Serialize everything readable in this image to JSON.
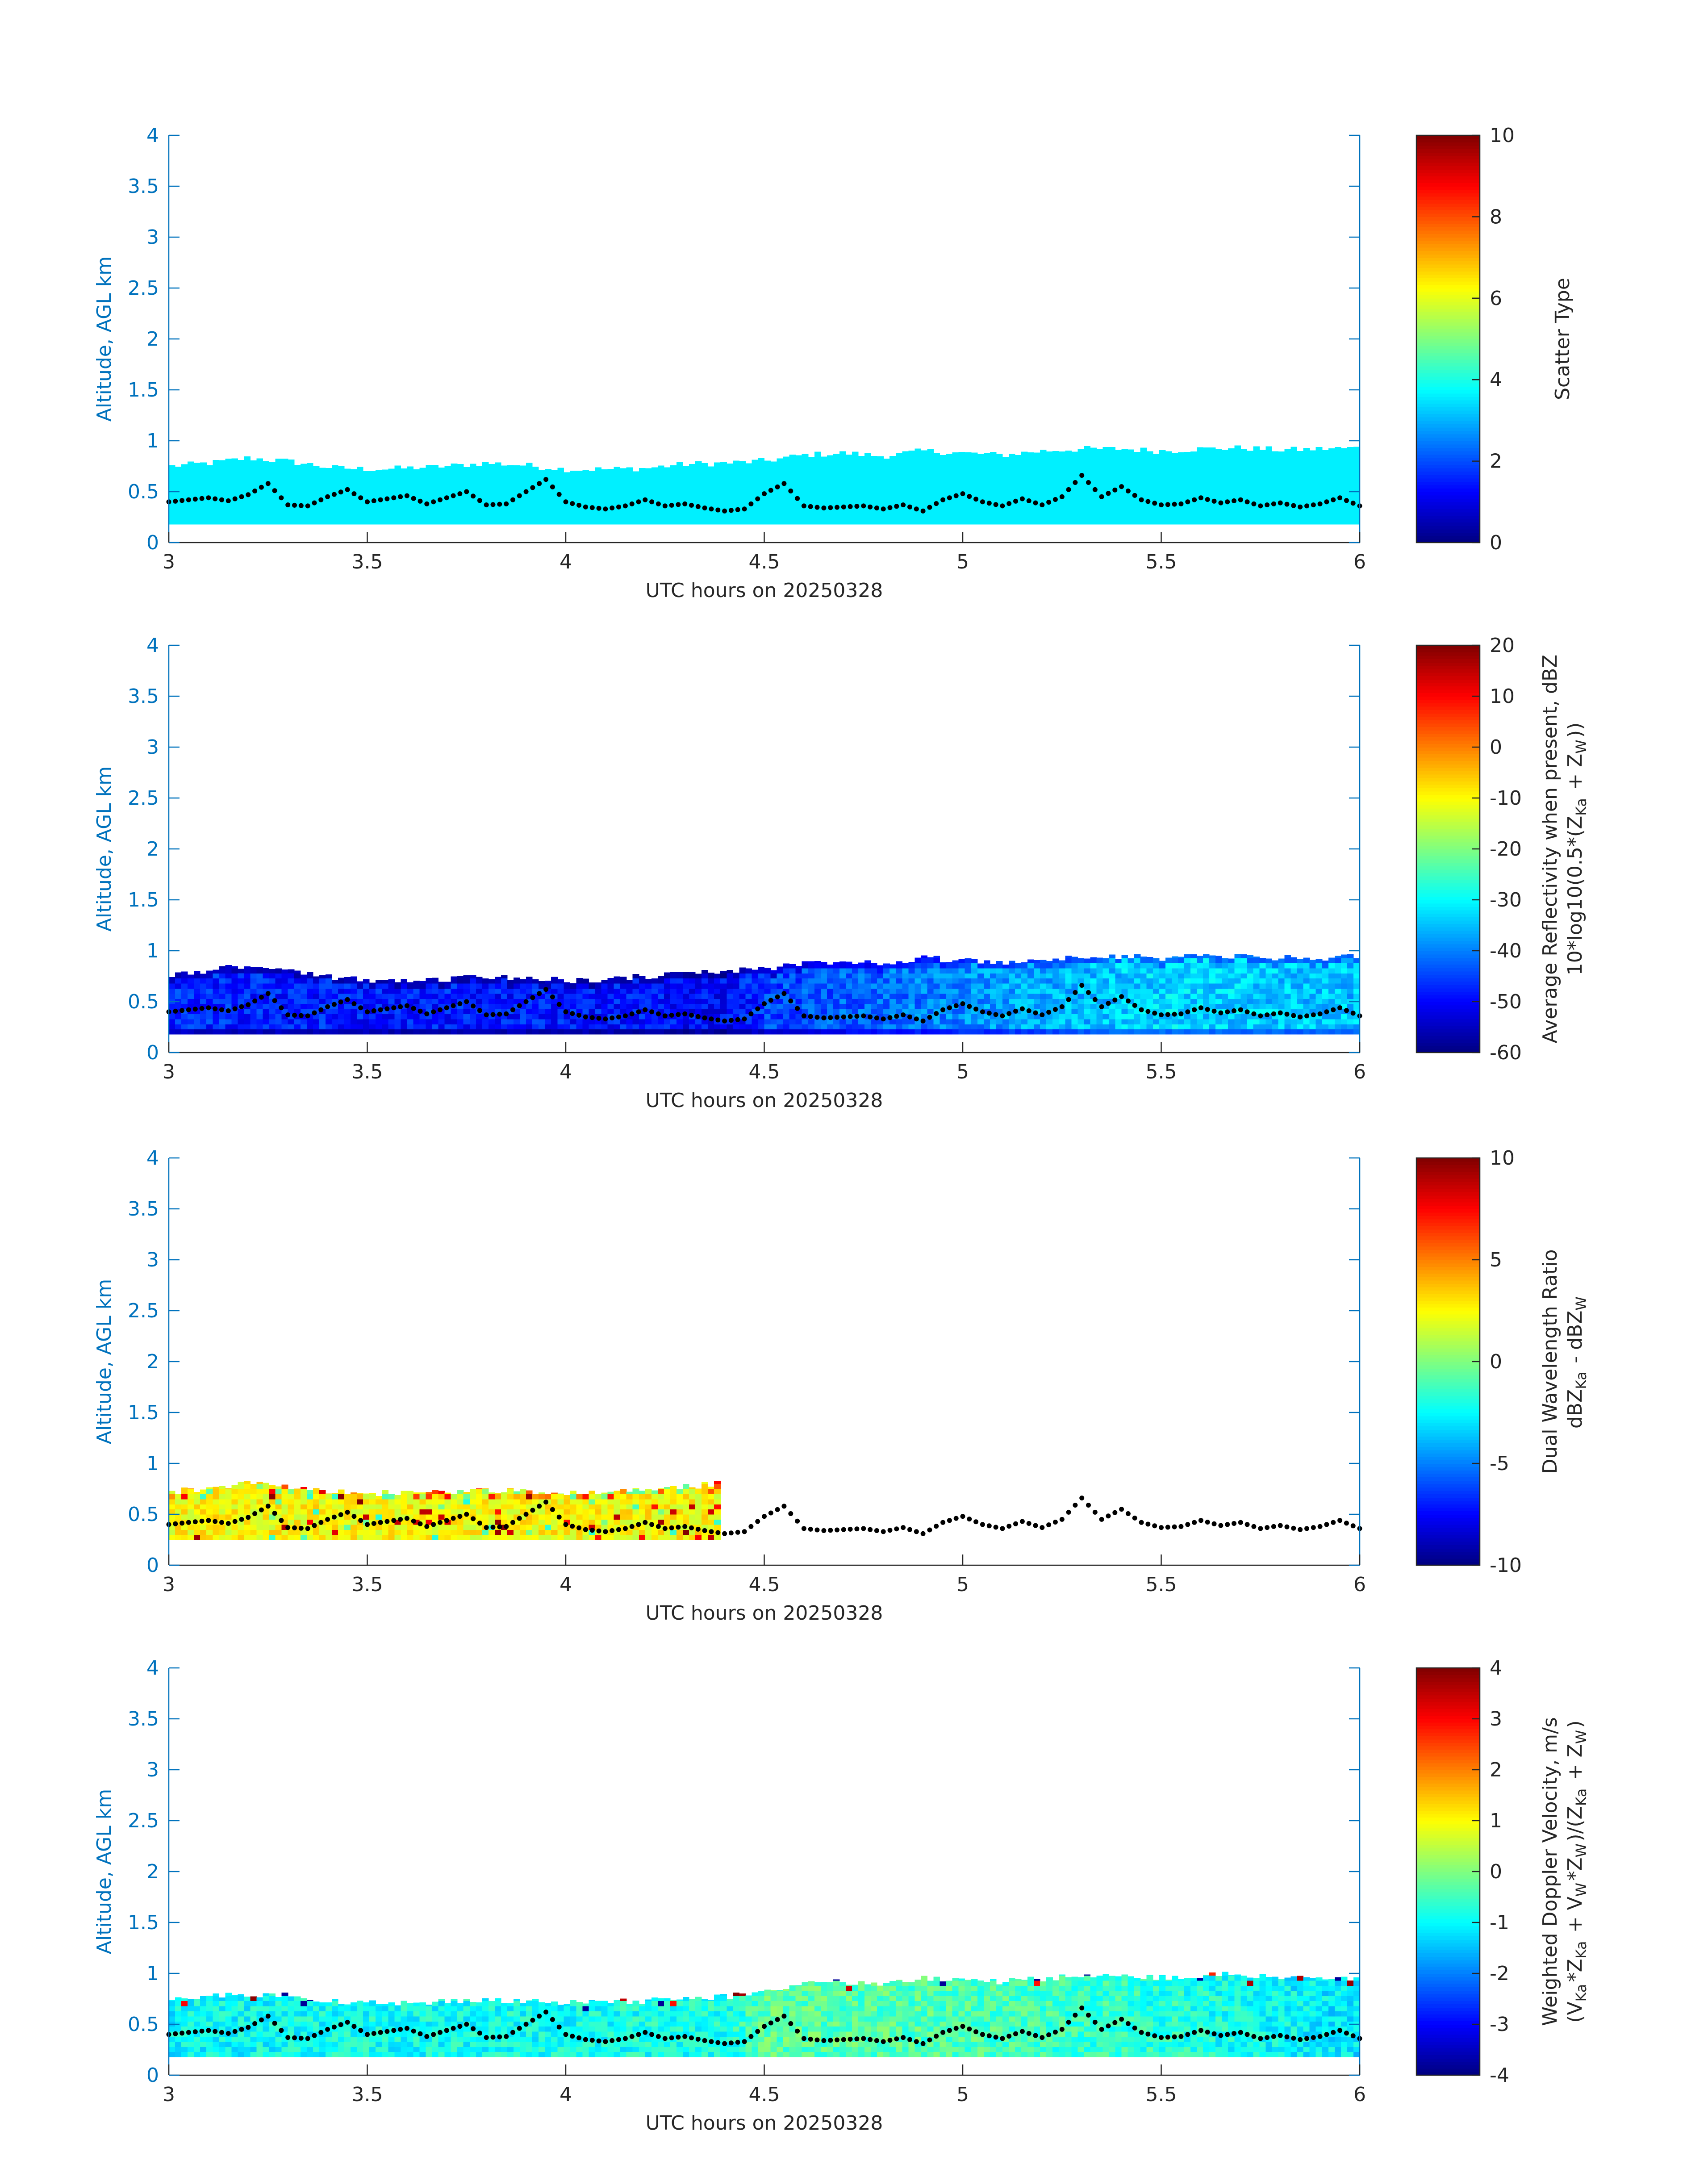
{
  "figure": {
    "x_label": "UTC hours on 20250328",
    "y_label": "Altitude, AGL km",
    "x_ticks": [
      "3",
      "3.5",
      "4",
      "4.5",
      "5",
      "5.5",
      "6"
    ],
    "y_ticks": [
      "0",
      "0.5",
      "1",
      "1.5",
      "2",
      "2.5",
      "3",
      "3.5",
      "4"
    ],
    "x_range": [
      3,
      6
    ],
    "y_range": [
      0,
      4
    ],
    "axis_color": "#0072BD",
    "marker_color": "#000000"
  },
  "chart_data": [
    {
      "type": "heatmap",
      "colorbar": {
        "label_lines": [
          "Scatter Type"
        ],
        "ticks": [
          "0",
          "2",
          "4",
          "6",
          "8",
          "10"
        ],
        "range": [
          0,
          10
        ],
        "colormap": "jet"
      },
      "field": {
        "kind": "constant",
        "value": 3.6,
        "bottom_km": 0.18,
        "x_end": 6.0
      },
      "top_km": {
        "x": [
          3.0,
          3.1,
          3.2,
          3.3,
          3.4,
          3.5,
          3.6,
          3.7,
          3.8,
          3.9,
          4.0,
          4.1,
          4.2,
          4.3,
          4.4,
          4.5,
          4.6,
          4.7,
          4.8,
          4.9,
          5.0,
          5.1,
          5.2,
          5.3,
          5.4,
          5.5,
          5.6,
          5.7,
          5.8,
          5.9,
          6.0
        ],
        "y": [
          0.75,
          0.78,
          0.83,
          0.8,
          0.74,
          0.72,
          0.73,
          0.75,
          0.78,
          0.76,
          0.72,
          0.72,
          0.73,
          0.77,
          0.78,
          0.8,
          0.86,
          0.88,
          0.85,
          0.9,
          0.88,
          0.86,
          0.9,
          0.92,
          0.92,
          0.9,
          0.92,
          0.93,
          0.91,
          0.92,
          0.93
        ]
      }
    },
    {
      "type": "heatmap",
      "colorbar": {
        "label_lines": [
          "Average Reflectivity when present, dBZ",
          "10*log10(0.5*(Z_Ka + Z_W))"
        ],
        "ticks": [
          "-60",
          "-50",
          "-40",
          "-30",
          "-20",
          "-10",
          "0",
          "10",
          "20"
        ],
        "range": [
          -60,
          20
        ],
        "colormap": "jet"
      },
      "field": {
        "kind": "reflectivity",
        "bottom_km": 0.18,
        "x_end": 6.0,
        "base": {
          "x": [
            3.0,
            3.5,
            4.0,
            4.4,
            4.5,
            5.0,
            5.5,
            6.0
          ],
          "y": [
            -47,
            -48,
            -48,
            -50,
            -45,
            -39,
            -33,
            -35
          ]
        }
      },
      "top_km": {
        "x": [
          3.0,
          3.1,
          3.2,
          3.3,
          3.4,
          3.5,
          3.6,
          3.7,
          3.8,
          3.9,
          4.0,
          4.1,
          4.2,
          4.3,
          4.4,
          4.5,
          4.6,
          4.7,
          4.8,
          4.9,
          5.0,
          5.1,
          5.2,
          5.3,
          5.4,
          5.5,
          5.6,
          5.7,
          5.8,
          5.9,
          6.0
        ],
        "y": [
          0.75,
          0.8,
          0.86,
          0.82,
          0.74,
          0.71,
          0.71,
          0.72,
          0.74,
          0.73,
          0.71,
          0.72,
          0.75,
          0.78,
          0.8,
          0.82,
          0.87,
          0.9,
          0.88,
          0.93,
          0.9,
          0.88,
          0.92,
          0.94,
          0.94,
          0.93,
          0.95,
          0.95,
          0.93,
          0.93,
          0.94
        ]
      }
    },
    {
      "type": "heatmap",
      "colorbar": {
        "label_lines": [
          "Dual Wavelength Ratio",
          "dBZ_Ka - dBZ_W"
        ],
        "ticks": [
          "-10",
          "-5",
          "0",
          "5",
          "10"
        ],
        "range": [
          -10,
          10
        ],
        "colormap": "jet"
      },
      "field": {
        "kind": "dwr",
        "bottom_km": 0.25,
        "x_end": 4.38,
        "base_value": 2.5
      },
      "top_km": {
        "x": [
          3.0,
          3.1,
          3.2,
          3.3,
          3.4,
          3.5,
          3.6,
          3.7,
          3.8,
          3.9,
          4.0,
          4.1,
          4.2,
          4.3,
          4.38
        ],
        "y": [
          0.72,
          0.76,
          0.8,
          0.78,
          0.73,
          0.71,
          0.71,
          0.72,
          0.74,
          0.73,
          0.71,
          0.72,
          0.75,
          0.77,
          0.8
        ]
      }
    },
    {
      "type": "heatmap",
      "colorbar": {
        "label_lines": [
          "Weighted Doppler Velocity, m/s",
          "(V_Ka*Z_Ka + V_W*Z_W)/(Z_Ka + Z_W)"
        ],
        "ticks": [
          "-4",
          "-3",
          "-2",
          "-1",
          "0",
          "1",
          "2",
          "3",
          "4"
        ],
        "range": [
          -4,
          4
        ],
        "colormap": "jet"
      },
      "field": {
        "kind": "velocity",
        "bottom_km": 0.18,
        "x_end": 6.0,
        "base": {
          "x": [
            3.0,
            3.5,
            4.0,
            4.4,
            4.5,
            5.0,
            5.5,
            6.0
          ],
          "y": [
            -1.0,
            -0.9,
            -0.9,
            -0.8,
            -0.3,
            -0.4,
            -0.7,
            -1.2
          ]
        }
      },
      "top_km": {
        "x": [
          3.0,
          3.1,
          3.2,
          3.3,
          3.4,
          3.5,
          3.6,
          3.7,
          3.8,
          3.9,
          4.0,
          4.1,
          4.2,
          4.3,
          4.4,
          4.5,
          4.6,
          4.7,
          4.8,
          4.9,
          5.0,
          5.1,
          5.2,
          5.3,
          5.4,
          5.5,
          5.6,
          5.7,
          5.8,
          5.9,
          6.0
        ],
        "y": [
          0.74,
          0.77,
          0.8,
          0.78,
          0.73,
          0.71,
          0.71,
          0.72,
          0.74,
          0.73,
          0.71,
          0.72,
          0.73,
          0.76,
          0.77,
          0.83,
          0.9,
          0.92,
          0.9,
          0.95,
          0.93,
          0.92,
          0.95,
          0.98,
          0.97,
          0.96,
          0.98,
          0.99,
          0.97,
          0.96,
          0.95
        ]
      }
    }
  ],
  "cloud_base_markers": {
    "x": [
      3.0,
      3.05,
      3.1,
      3.15,
      3.2,
      3.25,
      3.3,
      3.35,
      3.4,
      3.45,
      3.5,
      3.55,
      3.6,
      3.65,
      3.7,
      3.75,
      3.8,
      3.85,
      3.9,
      3.95,
      4.0,
      4.05,
      4.1,
      4.15,
      4.2,
      4.25,
      4.3,
      4.35,
      4.4,
      4.45,
      4.5,
      4.55,
      4.6,
      4.65,
      4.7,
      4.75,
      4.8,
      4.85,
      4.9,
      4.95,
      5.0,
      5.05,
      5.1,
      5.15,
      5.2,
      5.25,
      5.3,
      5.35,
      5.4,
      5.45,
      5.5,
      5.55,
      5.6,
      5.65,
      5.7,
      5.75,
      5.8,
      5.85,
      5.9,
      5.95,
      6.0
    ],
    "y": [
      0.4,
      0.42,
      0.44,
      0.41,
      0.47,
      0.58,
      0.37,
      0.36,
      0.45,
      0.52,
      0.4,
      0.43,
      0.46,
      0.38,
      0.44,
      0.5,
      0.37,
      0.38,
      0.5,
      0.62,
      0.4,
      0.35,
      0.33,
      0.36,
      0.42,
      0.36,
      0.38,
      0.34,
      0.31,
      0.33,
      0.48,
      0.58,
      0.36,
      0.34,
      0.35,
      0.36,
      0.33,
      0.37,
      0.31,
      0.42,
      0.48,
      0.4,
      0.36,
      0.43,
      0.37,
      0.45,
      0.66,
      0.45,
      0.55,
      0.42,
      0.37,
      0.38,
      0.44,
      0.39,
      0.42,
      0.36,
      0.39,
      0.35,
      0.38,
      0.44,
      0.36
    ]
  }
}
